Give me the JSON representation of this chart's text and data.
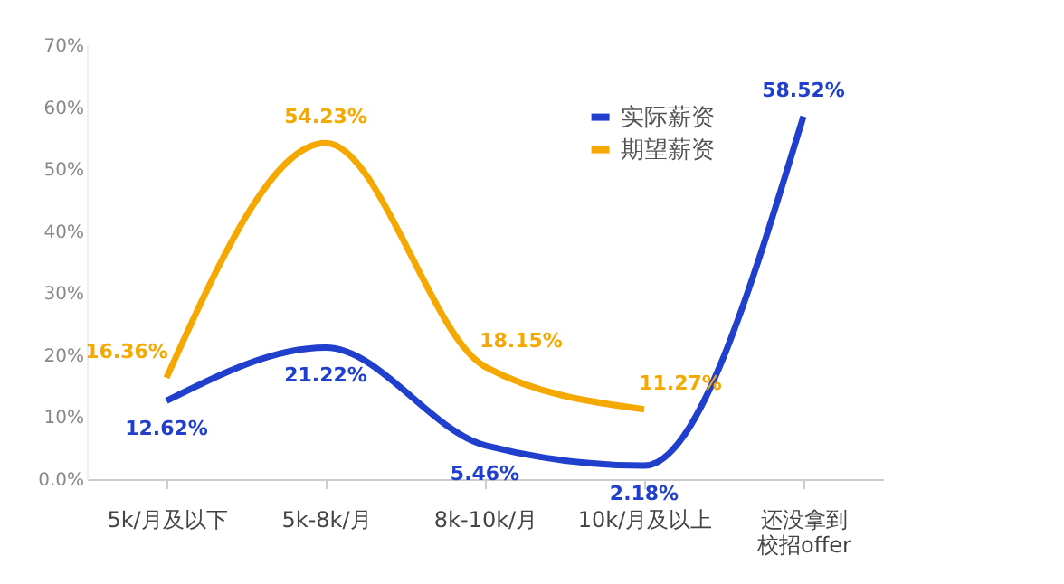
{
  "chart_data": {
    "type": "line",
    "categories": [
      "5k/月及以下",
      "5k-8k/月",
      "8k-10k/月",
      "10k/月及以上",
      "还没拿到校招offer"
    ],
    "series": [
      {
        "name": "实际薪资",
        "color": "#1f3fcc",
        "values": [
          12.62,
          21.22,
          5.46,
          2.18,
          58.52
        ],
        "value_labels": [
          "12.62%",
          "21.22%",
          "5.46%",
          "2.18%",
          "58.52%"
        ]
      },
      {
        "name": "期望薪资",
        "color": "#f5a800",
        "values": [
          16.36,
          54.23,
          18.15,
          11.27,
          null
        ],
        "value_labels": [
          "16.36%",
          "54.23%",
          "18.15%",
          "11.27%",
          null
        ]
      }
    ],
    "ylim": [
      0,
      70
    ],
    "yticks": [
      {
        "value": 0,
        "label": "0.0%"
      },
      {
        "value": 10,
        "label": "10%"
      },
      {
        "value": 20,
        "label": "20%"
      },
      {
        "value": 30,
        "label": "30%"
      },
      {
        "value": 40,
        "label": "40%"
      },
      {
        "value": 50,
        "label": "50%"
      },
      {
        "value": 60,
        "label": "60%"
      },
      {
        "value": 70,
        "label": "70%"
      }
    ],
    "grid": false,
    "legend": "top right",
    "marker": "none",
    "line_style": "solid"
  }
}
